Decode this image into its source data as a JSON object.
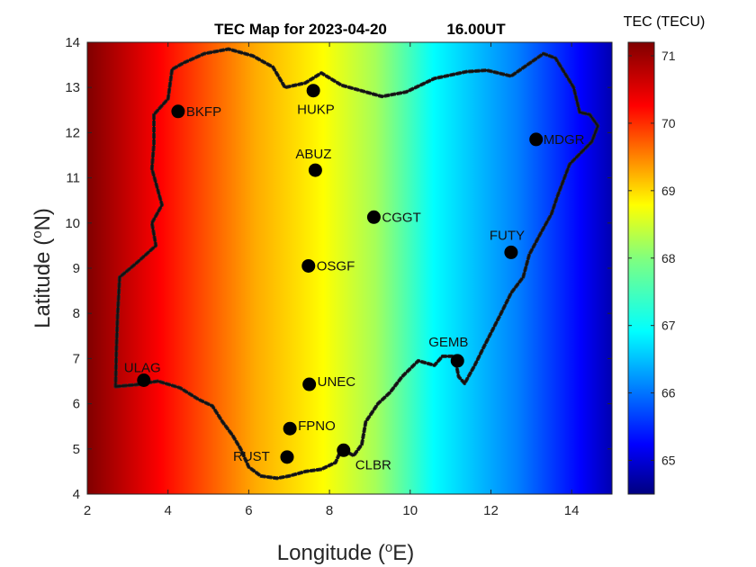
{
  "chart_data": {
    "type": "heatmap",
    "title_left": "TEC Map for 2023-04-20",
    "title_right": "16.00UT",
    "xlabel": "Longitude (",
    "xlabel_sup": "o",
    "xlabel_end": "E)",
    "ylabel": "Latitude (",
    "ylabel_sup": "o",
    "ylabel_end": "N)",
    "xlim": [
      2,
      15
    ],
    "ylim": [
      4,
      14
    ],
    "xticks": [
      2,
      4,
      6,
      8,
      10,
      12,
      14
    ],
    "yticks": [
      4,
      5,
      6,
      7,
      8,
      9,
      10,
      11,
      12,
      13,
      14
    ],
    "colorbar": {
      "title": "TEC (TECU)",
      "range": [
        64.5,
        71.2
      ],
      "ticks": [
        65,
        66,
        67,
        68,
        69,
        70,
        71
      ],
      "colormap": "jet"
    },
    "tec_gradient": {
      "west_lon": 2,
      "west_value": 71.2,
      "east_lon": 15,
      "east_value": 64.5
    },
    "stations": [
      {
        "name": "BKFP",
        "lon": 4.25,
        "lat": 12.47
      },
      {
        "name": "HUKP",
        "lon": 7.6,
        "lat": 12.93
      },
      {
        "name": "MDGR",
        "lon": 13.12,
        "lat": 11.85
      },
      {
        "name": "ABUZ",
        "lon": 7.65,
        "lat": 11.17
      },
      {
        "name": "CGGT",
        "lon": 9.1,
        "lat": 10.13
      },
      {
        "name": "FUTY",
        "lon": 12.5,
        "lat": 9.35
      },
      {
        "name": "OSGF",
        "lon": 7.48,
        "lat": 9.05
      },
      {
        "name": "GEMB",
        "lon": 11.17,
        "lat": 6.95
      },
      {
        "name": "ULAG",
        "lon": 3.4,
        "lat": 6.52
      },
      {
        "name": "UNEC",
        "lon": 7.5,
        "lat": 6.43
      },
      {
        "name": "FPNO",
        "lon": 7.02,
        "lat": 5.45
      },
      {
        "name": "RUST",
        "lon": 6.95,
        "lat": 4.82
      },
      {
        "name": "CLBR",
        "lon": 8.35,
        "lat": 4.97
      }
    ],
    "boundary": [
      [
        2.7,
        6.38
      ],
      [
        3.2,
        6.42
      ],
      [
        3.75,
        6.5
      ],
      [
        4.3,
        6.35
      ],
      [
        4.75,
        6.1
      ],
      [
        5.1,
        5.95
      ],
      [
        5.35,
        5.6
      ],
      [
        5.6,
        5.3
      ],
      [
        5.8,
        5.0
      ],
      [
        6.0,
        4.6
      ],
      [
        6.3,
        4.4
      ],
      [
        6.7,
        4.35
      ],
      [
        7.0,
        4.4
      ],
      [
        7.4,
        4.5
      ],
      [
        7.8,
        4.55
      ],
      [
        8.15,
        4.7
      ],
      [
        8.3,
        5.0
      ],
      [
        8.6,
        4.85
      ],
      [
        8.8,
        5.1
      ],
      [
        8.9,
        5.6
      ],
      [
        9.2,
        6.0
      ],
      [
        9.5,
        6.25
      ],
      [
        9.8,
        6.6
      ],
      [
        10.2,
        6.95
      ],
      [
        10.6,
        6.85
      ],
      [
        10.8,
        7.05
      ],
      [
        11.1,
        7.05
      ],
      [
        11.2,
        6.6
      ],
      [
        11.35,
        6.45
      ],
      [
        11.6,
        6.85
      ],
      [
        11.85,
        7.3
      ],
      [
        12.05,
        7.65
      ],
      [
        12.25,
        8.0
      ],
      [
        12.5,
        8.45
      ],
      [
        12.8,
        8.8
      ],
      [
        12.95,
        9.3
      ],
      [
        13.25,
        9.8
      ],
      [
        13.5,
        10.2
      ],
      [
        13.65,
        10.6
      ],
      [
        13.95,
        11.3
      ],
      [
        14.5,
        11.8
      ],
      [
        14.65,
        12.15
      ],
      [
        14.45,
        12.4
      ],
      [
        14.2,
        12.45
      ],
      [
        14.05,
        13.0
      ],
      [
        13.6,
        13.65
      ],
      [
        13.3,
        13.75
      ],
      [
        12.5,
        13.25
      ],
      [
        11.9,
        13.38
      ],
      [
        11.4,
        13.35
      ],
      [
        10.6,
        13.2
      ],
      [
        9.9,
        12.9
      ],
      [
        9.3,
        12.8
      ],
      [
        8.7,
        12.95
      ],
      [
        8.3,
        13.05
      ],
      [
        7.8,
        13.32
      ],
      [
        7.4,
        13.1
      ],
      [
        6.9,
        13.0
      ],
      [
        6.6,
        13.45
      ],
      [
        6.1,
        13.7
      ],
      [
        5.5,
        13.85
      ],
      [
        4.9,
        13.75
      ],
      [
        4.4,
        13.55
      ],
      [
        4.1,
        13.4
      ],
      [
        4.0,
        12.75
      ],
      [
        3.65,
        12.4
      ],
      [
        3.65,
        11.75
      ],
      [
        3.6,
        11.2
      ],
      [
        3.85,
        10.4
      ],
      [
        3.6,
        10.0
      ],
      [
        3.7,
        9.5
      ],
      [
        3.2,
        9.1
      ],
      [
        2.8,
        8.8
      ],
      [
        2.75,
        7.95
      ],
      [
        2.72,
        7.2
      ],
      [
        2.7,
        6.38
      ]
    ]
  }
}
